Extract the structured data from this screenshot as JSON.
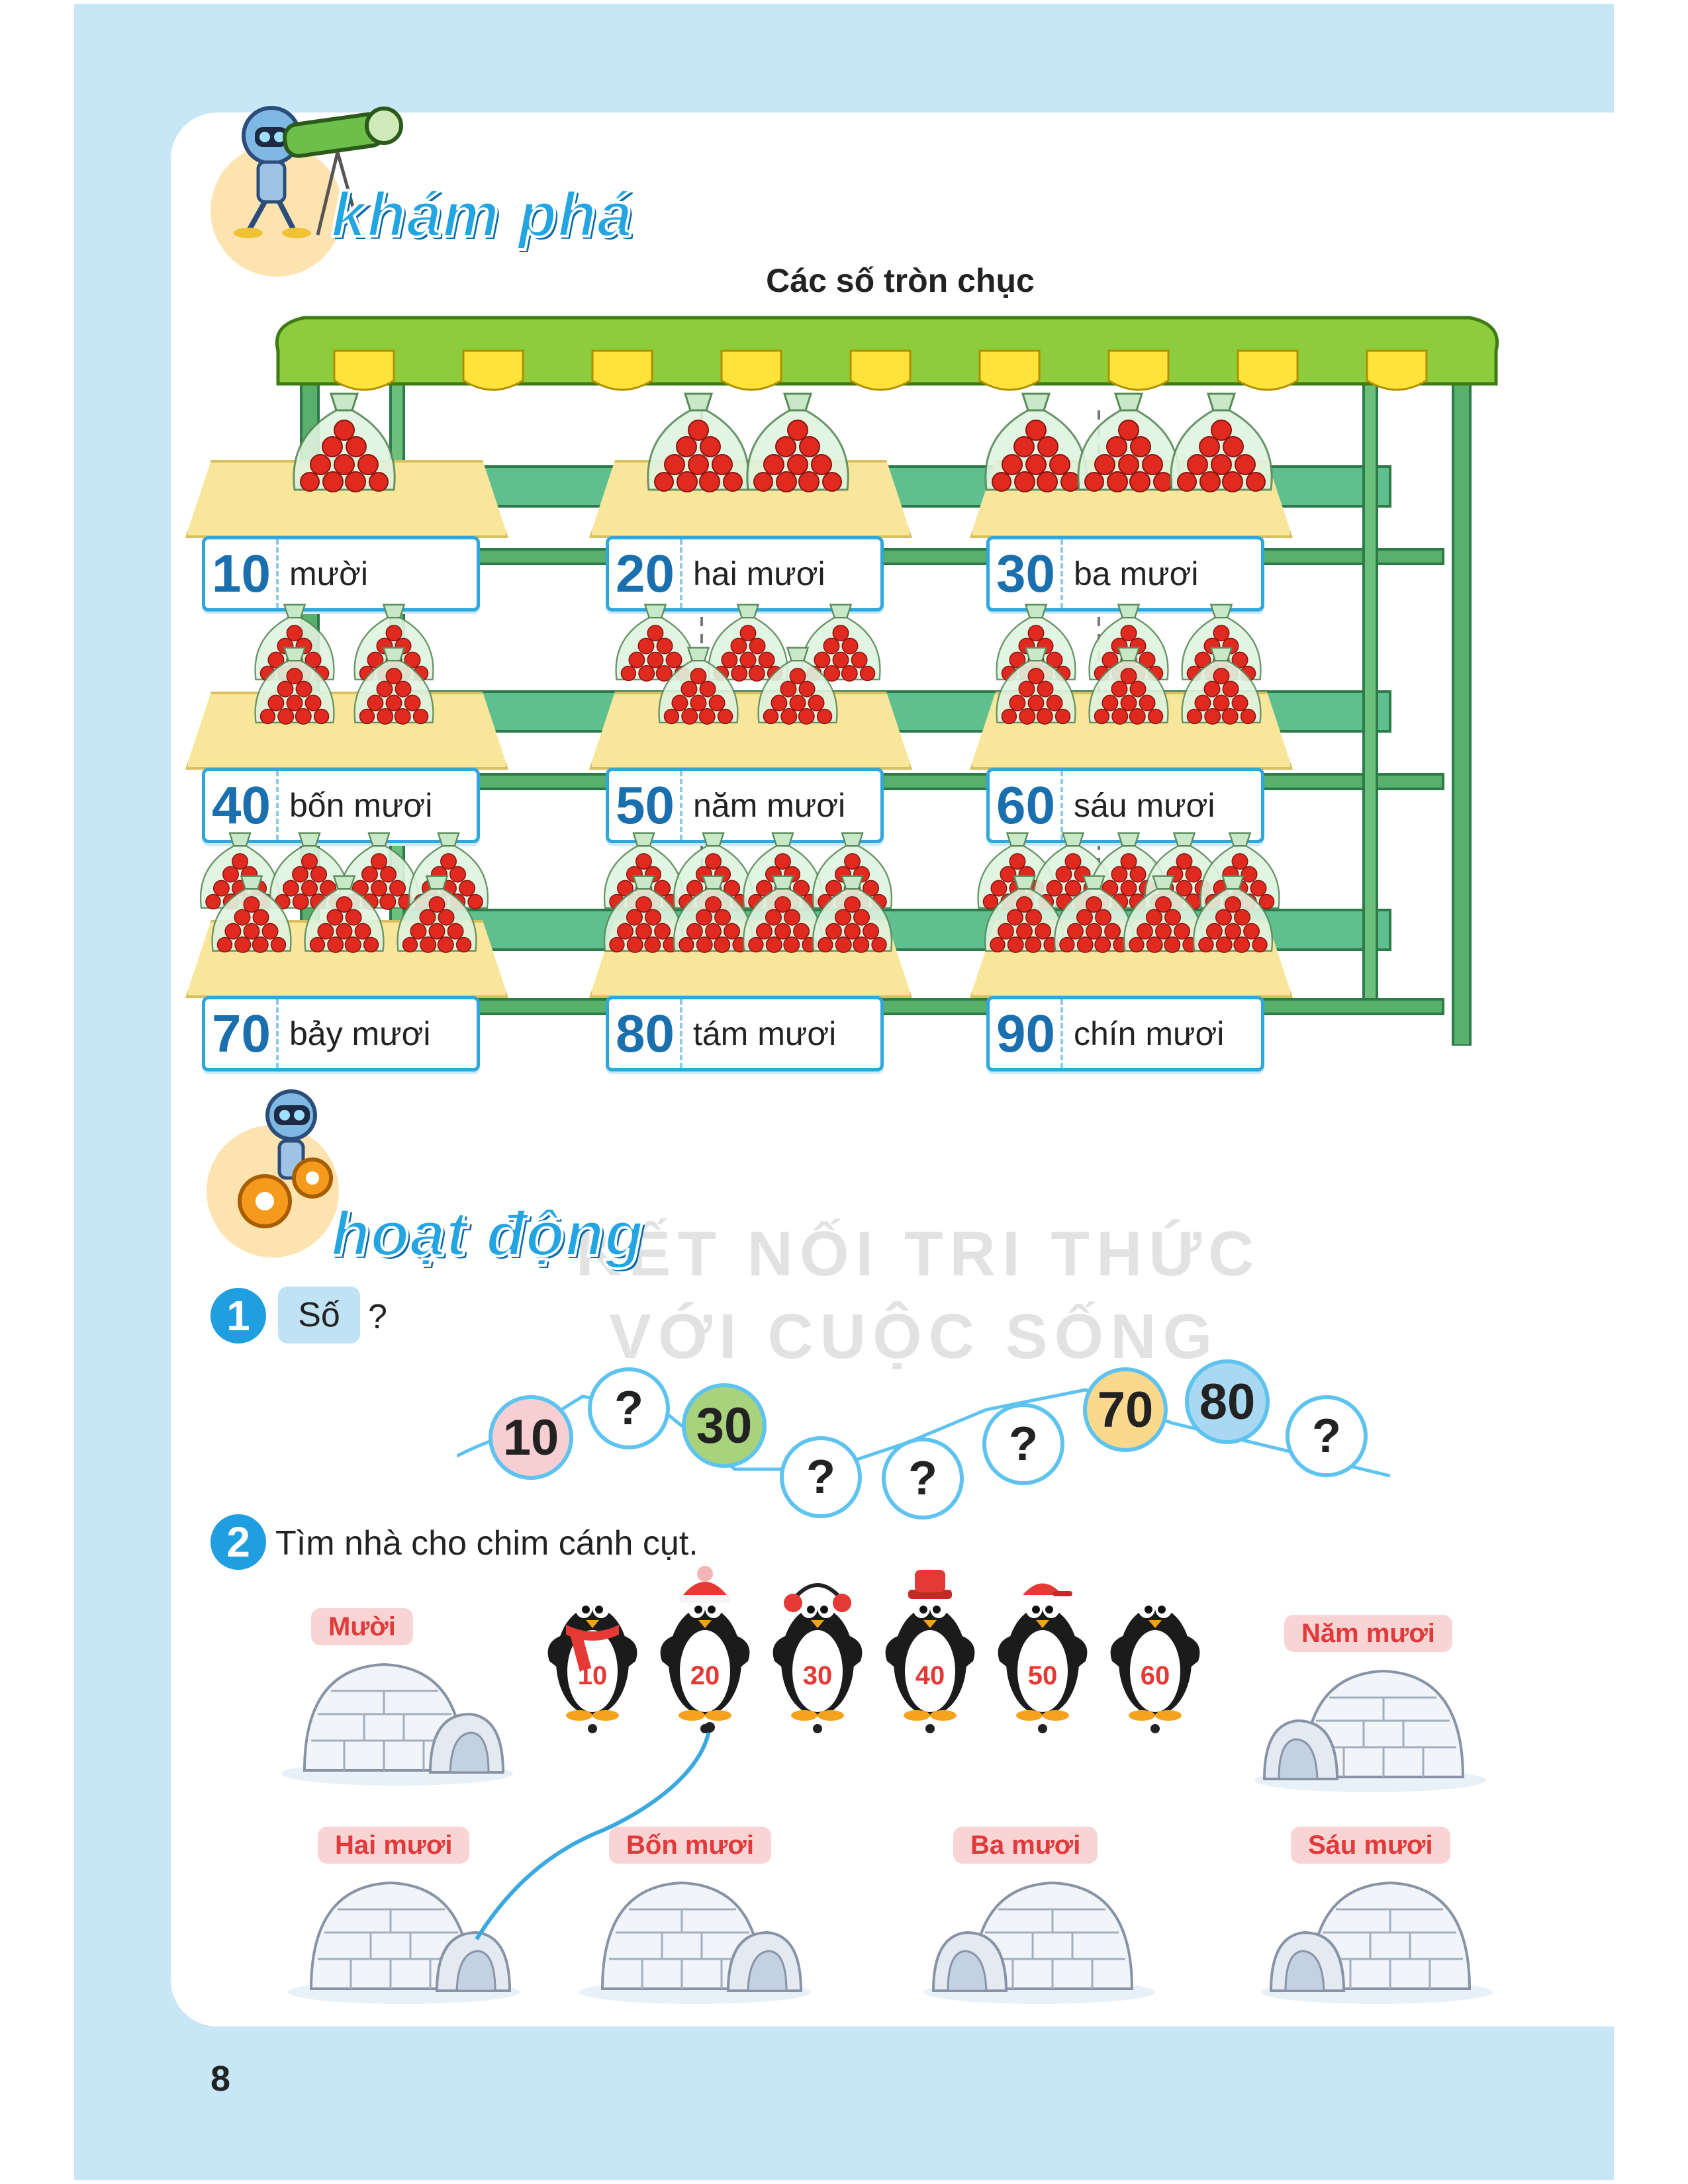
{
  "sections": {
    "explore_title": "khám phá",
    "activity_title": "hoạt động"
  },
  "shelf": {
    "title": "Các số tròn chục",
    "items": [
      {
        "number": "10",
        "word": "mười",
        "bags": 1
      },
      {
        "number": "20",
        "word": "hai mươi",
        "bags": 2
      },
      {
        "number": "30",
        "word": "ba mươi",
        "bags": 3
      },
      {
        "number": "40",
        "word": "bốn mươi",
        "bags": 4
      },
      {
        "number": "50",
        "word": "năm mươi",
        "bags": 5
      },
      {
        "number": "60",
        "word": "sáu mươi",
        "bags": 6
      },
      {
        "number": "70",
        "word": "bảy mươi",
        "bags": 7
      },
      {
        "number": "80",
        "word": "tám mươi",
        "bags": 8
      },
      {
        "number": "90",
        "word": "chín mươi",
        "bags": 9
      }
    ]
  },
  "watermark": {
    "line1": "KẾT NỐI TRI THỨC",
    "line2": "VỚI CUỘC SỐNG"
  },
  "task1": {
    "number": "1",
    "label": "Số",
    "question_mark": "?",
    "chain": [
      "10",
      "?",
      "30",
      "?",
      "?",
      "?",
      "70",
      "80",
      "?"
    ]
  },
  "task2": {
    "number": "2",
    "instruction": "Tìm nhà cho chim cánh cụt.",
    "penguins": [
      "10",
      "20",
      "30",
      "40",
      "50",
      "60"
    ],
    "igloos": [
      "Mười",
      "Năm mươi",
      "Hai mươi",
      "Bốn mươi",
      "Ba mươi",
      "Sáu mươi"
    ]
  },
  "page_number": "8",
  "colors": {
    "frame": "#c7e6f6",
    "accent_blue": "#1f9ee0",
    "number_blue": "#1a6fae",
    "shelf_green": "#4cae5a",
    "roof_green": "#8dcc3c",
    "roof_yellow": "#ffe23a",
    "tomato_red": "#e02a20",
    "penguin_red": "#e53935",
    "circle_pink": "#f7cfd3",
    "circle_green": "#a8d27c",
    "circle_yellow": "#fbd98c",
    "circle_blue": "#a9d9f2"
  }
}
